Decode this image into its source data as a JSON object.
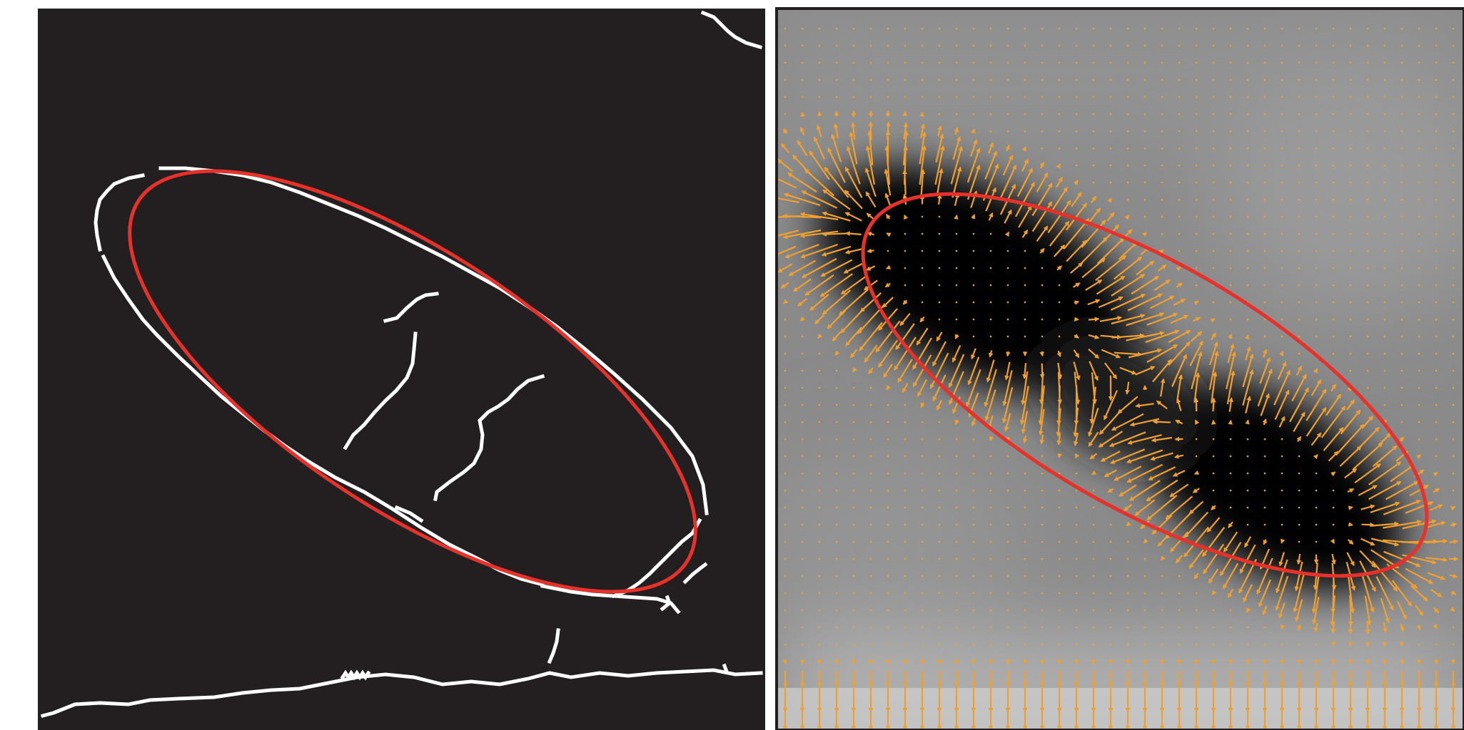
{
  "figure": {
    "panels": [
      {
        "name": "edge-map-panel",
        "description_visible": false,
        "background_color": "#231f20",
        "edge_color": "#ffffff",
        "ellipse_color": "#e8312a"
      },
      {
        "name": "gradient-field-panel",
        "background_color": "#8a8a8a",
        "dark_blob_color": "#080808",
        "arrow_color": "#f0a030",
        "ellipse_color": "#e8312a"
      }
    ]
  }
}
